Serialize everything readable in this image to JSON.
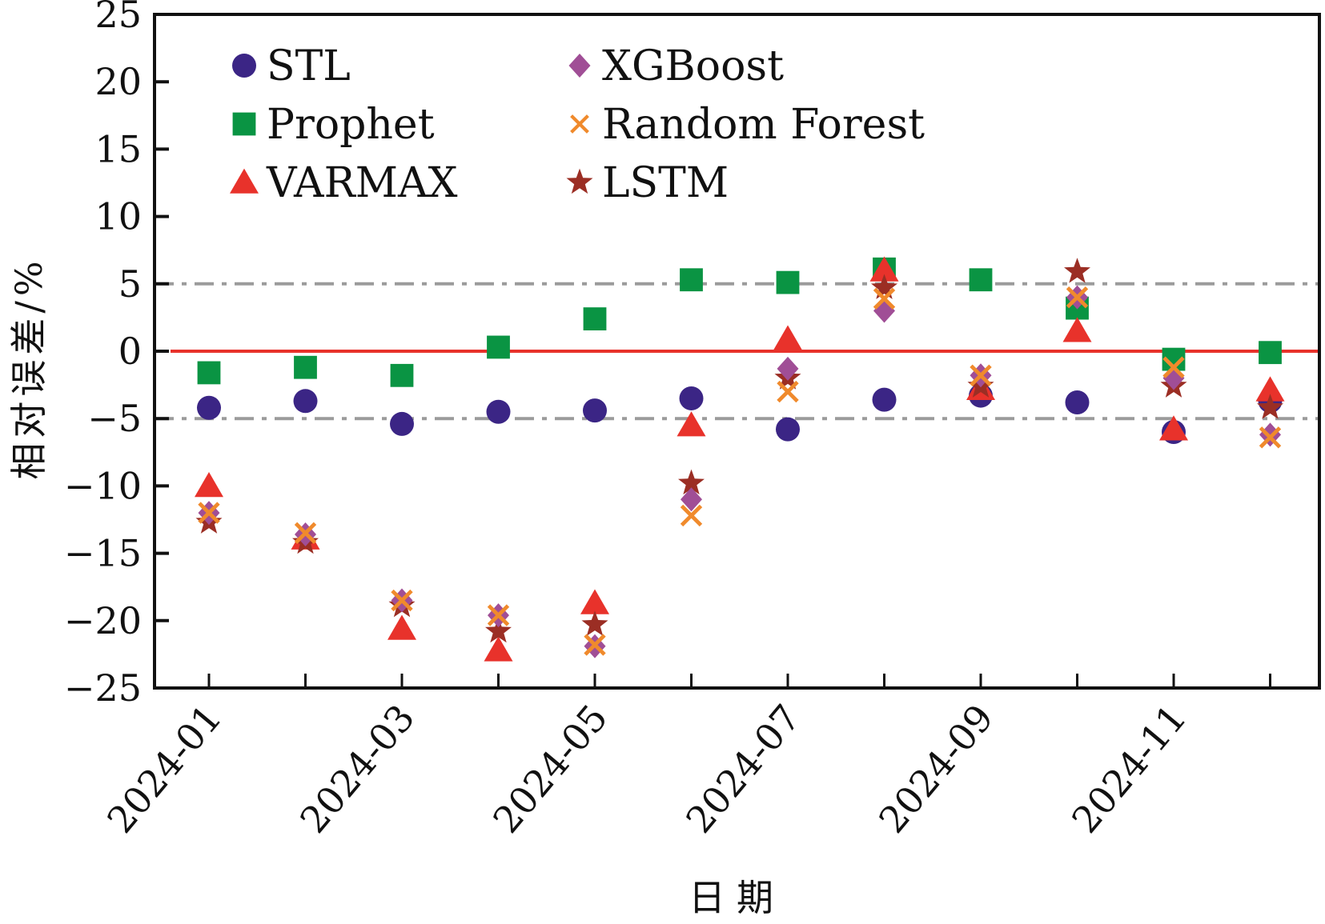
{
  "chart_data": {
    "type": "scatter",
    "title": "",
    "xlabel": "日期",
    "ylabel": "相对误差/%",
    "ylim": [
      -25,
      25
    ],
    "yticks": [
      "25",
      "20",
      "15",
      "10",
      "5",
      "0",
      "-5",
      "-10",
      "-15",
      "-20",
      "-25"
    ],
    "ytick_values": [
      25,
      20,
      15,
      10,
      5,
      0,
      -5,
      -10,
      -15,
      -20,
      -25
    ],
    "categories": [
      "2024-01",
      "2024-02",
      "2024-03",
      "2024-04",
      "2024-05",
      "2024-06",
      "2024-07",
      "2024-08",
      "2024-09",
      "2024-10",
      "2024-11",
      "2024-12"
    ],
    "xtick_labels": [
      "2024-01",
      "2024-03",
      "2024-05",
      "2024-07",
      "2024-09",
      "2024-11"
    ],
    "reference_lines": [
      {
        "value": 0,
        "style": "solid",
        "color": "#e8322b"
      },
      {
        "value": 5,
        "style": "dashdot",
        "color": "#9b9b9b"
      },
      {
        "value": -5,
        "style": "dashdot",
        "color": "#9b9b9b"
      }
    ],
    "legend_position": "top-left",
    "series": [
      {
        "name": "STL",
        "marker": "circle",
        "color": "#3b2585",
        "values": [
          -4.2,
          -3.7,
          -5.4,
          -4.5,
          -4.4,
          -3.5,
          -5.8,
          -3.6,
          -3.3,
          -3.8,
          -6.0,
          -3.7
        ]
      },
      {
        "name": "Prophet",
        "marker": "square",
        "color": "#0a9443",
        "values": [
          -1.6,
          -1.2,
          -1.8,
          0.3,
          2.4,
          5.3,
          5.1,
          6.1,
          5.3,
          3.2,
          -0.6,
          -0.1
        ]
      },
      {
        "name": "VARMAX",
        "marker": "triangle",
        "color": "#e8322b",
        "values": [
          -10.0,
          -13.9,
          -20.6,
          -22.2,
          -18.7,
          -5.5,
          0.9,
          6.0,
          -2.8,
          1.5,
          -5.8,
          -2.9
        ]
      },
      {
        "name": "XGBoost",
        "marker": "diamond",
        "color": "#a04e96",
        "values": [
          -12.0,
          -13.6,
          -18.5,
          -19.6,
          -21.9,
          -11.0,
          -1.3,
          3.0,
          -1.8,
          4.0,
          -2.0,
          -6.2
        ]
      },
      {
        "name": "Random Forest",
        "marker": "x",
        "color": "#f08a2c",
        "values": [
          -12.0,
          -13.5,
          -18.5,
          -19.6,
          -21.8,
          -12.2,
          -3.0,
          3.9,
          -1.8,
          4.0,
          -1.2,
          -6.4
        ]
      },
      {
        "name": "LSTM",
        "marker": "star",
        "color": "#9b2e24",
        "values": [
          -12.7,
          -14.2,
          -18.9,
          -20.8,
          -20.3,
          -9.8,
          -2.0,
          4.7,
          -2.6,
          5.9,
          -2.6,
          -4.2
        ]
      }
    ]
  }
}
